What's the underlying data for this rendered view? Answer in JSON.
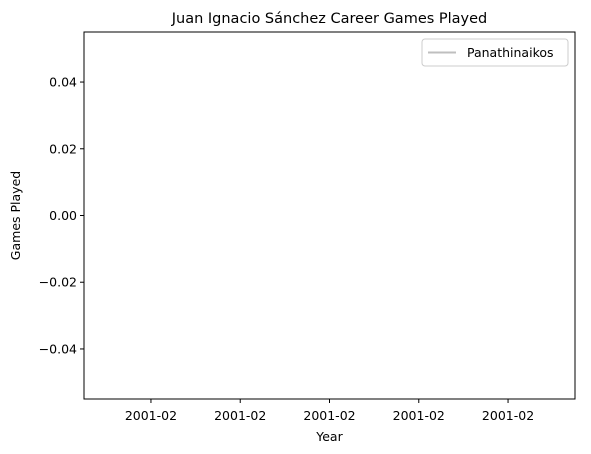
{
  "chart_data": {
    "type": "line",
    "title": "Juan Ignacio Sánchez Career Games Played",
    "xlabel": "Year",
    "ylabel": "Games Played",
    "x_tick_labels": [
      "2001-02",
      "2001-02",
      "2001-02",
      "2001-02",
      "2001-02"
    ],
    "y_ticks": [
      -0.04,
      -0.02,
      0.0,
      0.02,
      0.04
    ],
    "y_tick_labels": [
      "−0.04",
      "−0.02",
      "0.00",
      "0.02",
      "0.04"
    ],
    "ylim": [
      -0.055,
      0.055
    ],
    "grid": false,
    "legend_position": "top-right",
    "series": [
      {
        "name": "Panathinaikos",
        "color": "#bfbfbf",
        "x": [],
        "values": []
      }
    ]
  }
}
